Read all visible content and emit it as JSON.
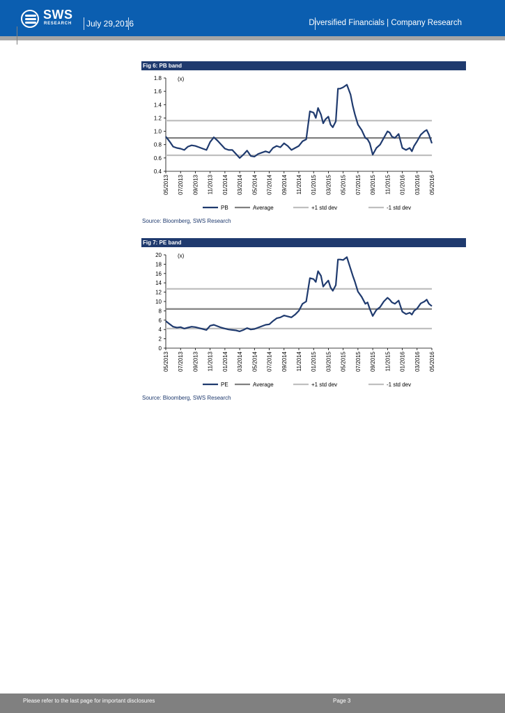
{
  "header": {
    "logo_text": "SWS",
    "logo_sub": "RESEARCH",
    "date": "July 29,2016",
    "section": "Diversified Financials | Company Research"
  },
  "figures": [
    {
      "title": "Fig 6: PB band",
      "source": "Source: Bloomberg, SWS Research"
    },
    {
      "title": "Fig 7: PE band",
      "source": "Source: Bloomberg, SWS Research"
    }
  ],
  "chart_data": [
    {
      "type": "line",
      "title": "Fig 6: PB band",
      "unit_label": "(x)",
      "ylim": [
        0.4,
        1.8
      ],
      "yticks": [
        0.4,
        0.6,
        0.8,
        1.0,
        1.2,
        1.4,
        1.6,
        1.8
      ],
      "ytick_labels": [
        "0.4",
        "0.6",
        "0.8",
        "1.0",
        "1.2",
        "1.4",
        "1.6",
        "1.8"
      ],
      "x_tick_labels": [
        "05/2013",
        "07/2013",
        "09/2013",
        "11/2013",
        "01/2014",
        "03/2014",
        "05/2014",
        "07/2014",
        "09/2014",
        "11/2014",
        "01/2015",
        "03/2015",
        "05/2015",
        "07/2015",
        "09/2015",
        "11/2015",
        "01/2016",
        "03/2016",
        "05/2016"
      ],
      "x_range": [
        0,
        36
      ],
      "series": [
        {
          "name": "PB",
          "color": "#1f3a6e",
          "kind": "data",
          "x": [
            0,
            0.5,
            1,
            1.5,
            2,
            2.5,
            3,
            3.5,
            4,
            4.5,
            5,
            5.5,
            6,
            6.5,
            7,
            7.5,
            8,
            8.5,
            9,
            9.5,
            10,
            10.5,
            11,
            11.5,
            12,
            12.5,
            13,
            13.5,
            14,
            14.5,
            15,
            15.5,
            16,
            16.5,
            17,
            17.5,
            18,
            18.5,
            19,
            19.5,
            20,
            20.3,
            20.6,
            21,
            21.3,
            21.6,
            22,
            22.3,
            22.6,
            23,
            23.3,
            23.6,
            24,
            24.5,
            25,
            25.3,
            25.6,
            26,
            26.5,
            27,
            27.3,
            27.6,
            28,
            28.5,
            29,
            29.5,
            30,
            30.3,
            30.6,
            31,
            31.5,
            32,
            32.5,
            33,
            33.3,
            33.6,
            34,
            34.5,
            35,
            35.3,
            35.6,
            36
          ],
          "values": [
            0.92,
            0.85,
            0.77,
            0.75,
            0.74,
            0.72,
            0.77,
            0.79,
            0.78,
            0.76,
            0.74,
            0.72,
            0.84,
            0.91,
            0.86,
            0.8,
            0.74,
            0.72,
            0.72,
            0.66,
            0.6,
            0.65,
            0.71,
            0.63,
            0.62,
            0.66,
            0.68,
            0.7,
            0.68,
            0.75,
            0.78,
            0.76,
            0.82,
            0.78,
            0.72,
            0.75,
            0.78,
            0.85,
            0.88,
            1.3,
            1.28,
            1.2,
            1.35,
            1.25,
            1.12,
            1.18,
            1.22,
            1.1,
            1.06,
            1.15,
            1.64,
            1.64,
            1.66,
            1.7,
            1.55,
            1.38,
            1.25,
            1.1,
            1.02,
            0.9,
            0.88,
            0.82,
            0.65,
            0.75,
            0.8,
            0.9,
            1.0,
            0.98,
            0.92,
            0.9,
            0.96,
            0.75,
            0.72,
            0.75,
            0.7,
            0.78,
            0.85,
            0.95,
            1.0,
            1.02,
            0.95,
            0.82
          ]
        },
        {
          "name": "Average",
          "color": "#808080",
          "kind": "flat",
          "value": 0.9
        },
        {
          "name": "+1 std dev",
          "color": "#bfbfbf",
          "kind": "flat",
          "value": 1.16
        },
        {
          "name": "-1 std dev",
          "color": "#bfbfbf",
          "kind": "flat",
          "value": 0.64
        }
      ]
    },
    {
      "type": "line",
      "title": "Fig 7: PE band",
      "unit_label": "(x)",
      "ylim": [
        0,
        20
      ],
      "yticks": [
        0,
        2,
        4,
        6,
        8,
        10,
        12,
        14,
        16,
        18,
        20
      ],
      "ytick_labels": [
        "0",
        "2",
        "4",
        "6",
        "8",
        "10",
        "12",
        "14",
        "16",
        "18",
        "20"
      ],
      "x_tick_labels": [
        "05/2013",
        "07/2013",
        "09/2013",
        "11/2013",
        "01/2014",
        "03/2014",
        "05/2014",
        "07/2014",
        "09/2014",
        "11/2014",
        "01/2015",
        "03/2015",
        "05/2015",
        "07/2015",
        "09/2015",
        "11/2015",
        "01/2016",
        "03/2016",
        "05/2016"
      ],
      "x_range": [
        0,
        36
      ],
      "series": [
        {
          "name": "PE",
          "color": "#1f3a6e",
          "kind": "data",
          "x": [
            0,
            0.5,
            1,
            1.5,
            2,
            2.5,
            3,
            3.5,
            4,
            4.5,
            5,
            5.5,
            6,
            6.5,
            7,
            7.5,
            8,
            8.5,
            9,
            9.5,
            10,
            10.5,
            11,
            11.5,
            12,
            12.5,
            13,
            13.5,
            14,
            14.5,
            15,
            15.5,
            16,
            16.5,
            17,
            17.5,
            18,
            18.5,
            19,
            19.5,
            20,
            20.3,
            20.6,
            21,
            21.3,
            21.6,
            22,
            22.3,
            22.6,
            23,
            23.3,
            23.6,
            24,
            24.5,
            25,
            25.3,
            25.6,
            26,
            26.5,
            27,
            27.3,
            27.6,
            28,
            28.5,
            29,
            29.5,
            30,
            30.3,
            30.6,
            31,
            31.5,
            32,
            32.5,
            33,
            33.3,
            33.6,
            34,
            34.5,
            35,
            35.3,
            35.6,
            36
          ],
          "values": [
            5.8,
            5.2,
            4.6,
            4.4,
            4.5,
            4.2,
            4.4,
            4.6,
            4.5,
            4.3,
            4.1,
            3.9,
            4.8,
            5.0,
            4.7,
            4.4,
            4.2,
            4.0,
            3.9,
            3.8,
            3.6,
            3.9,
            4.3,
            4.0,
            4.1,
            4.4,
            4.7,
            5.0,
            5.1,
            5.8,
            6.4,
            6.6,
            7.0,
            6.8,
            6.6,
            7.2,
            8.0,
            9.5,
            10.0,
            15.0,
            14.8,
            14.2,
            16.5,
            15.5,
            13.2,
            13.8,
            14.5,
            13.0,
            12.3,
            13.5,
            19.0,
            19.0,
            18.9,
            19.5,
            17.0,
            15.5,
            14.2,
            12.1,
            11.0,
            9.5,
            9.8,
            8.4,
            6.9,
            8.2,
            8.8,
            10.0,
            10.8,
            10.4,
            9.8,
            9.5,
            10.2,
            7.8,
            7.3,
            7.6,
            7.2,
            8.0,
            8.5,
            9.6,
            10.0,
            10.4,
            9.5,
            9.0
          ]
        },
        {
          "name": "Average",
          "color": "#808080",
          "kind": "flat",
          "value": 8.4
        },
        {
          "name": "+1 std dev",
          "color": "#bfbfbf",
          "kind": "flat",
          "value": 12.7
        },
        {
          "name": "-1 std dev",
          "color": "#bfbfbf",
          "kind": "flat",
          "value": 4.2
        }
      ]
    }
  ],
  "footer": {
    "disclaimer": "Please refer to the last page for important disclosures",
    "page": "Page 3"
  }
}
